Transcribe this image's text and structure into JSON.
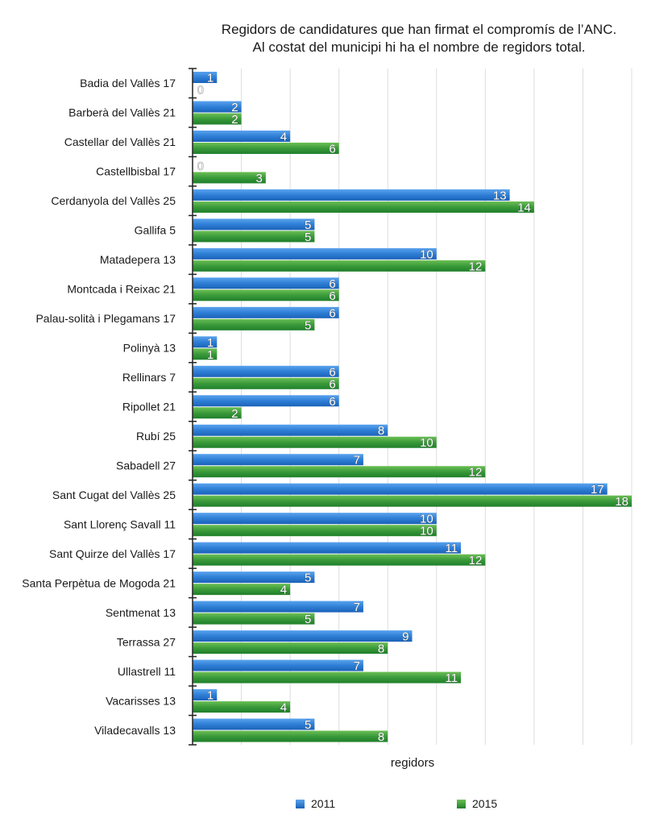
{
  "chart_data": {
    "type": "bar",
    "orientation": "horizontal",
    "title": [
      "Regidors de candidatures que han firmat el compromís de l’ANC.",
      "Al costat del municipi hi ha el nombre de regidors total."
    ],
    "xlabel": "regidors",
    "ylabel": "",
    "xlim": [
      0,
      18
    ],
    "grid_step": 2,
    "grid": true,
    "legend_position": "bottom",
    "categories": [
      "Badia del Vallès 17",
      "Barberà del Vallès 21",
      "Castellar del Vallès 21",
      "Castellbisbal 17",
      "Cerdanyola del Vallès 25",
      "Gallifa 5",
      "Matadepera 13",
      "Montcada i Reixac 21",
      "Palau-solità i Plegamans 17",
      "Polinyà 13",
      "Rellinars 7",
      "Ripollet 21",
      "Rubí 25",
      "Sabadell 27",
      "Sant Cugat del Vallès 25",
      "Sant Llorenç Savall 11",
      "Sant Quirze del Vallès 17",
      "Santa Perpètua de Mogoda 21",
      "Sentmenat 13",
      "Terrassa 27",
      "Ullastrell 11",
      "Vacarisses 13",
      "Viladecavalls 13"
    ],
    "series": [
      {
        "name": "2011",
        "color": "#2f7fd6",
        "values": [
          1,
          2,
          4,
          0,
          13,
          5,
          10,
          6,
          6,
          1,
          6,
          6,
          8,
          7,
          17,
          10,
          11,
          5,
          7,
          9,
          7,
          1,
          5
        ]
      },
      {
        "name": "2015",
        "color": "#3a9a3a",
        "values": [
          0,
          2,
          6,
          3,
          14,
          5,
          12,
          6,
          5,
          1,
          6,
          2,
          10,
          12,
          18,
          10,
          12,
          4,
          5,
          8,
          11,
          4,
          8
        ]
      }
    ]
  }
}
